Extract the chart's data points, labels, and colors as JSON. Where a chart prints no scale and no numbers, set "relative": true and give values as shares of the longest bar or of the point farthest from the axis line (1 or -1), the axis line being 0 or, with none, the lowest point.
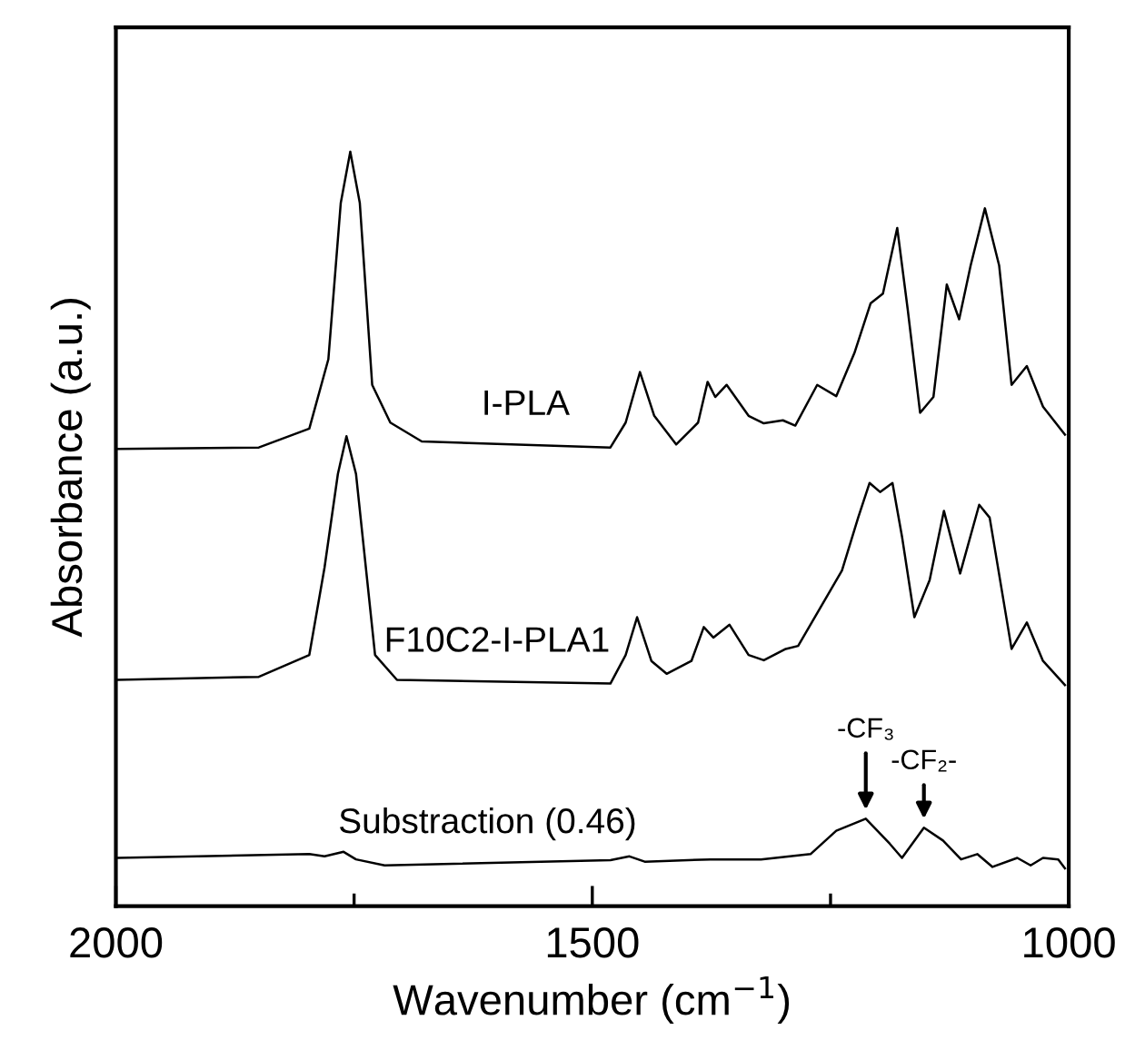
{
  "chart_data": {
    "type": "line",
    "relative": true,
    "xlabel": "Wavenumber (cm$^{−1}$)",
    "ylabel": "Absorbance (a.u.)",
    "tick_labels": "x",
    "xlim": [
      2000,
      1000
    ],
    "xticks": [
      2000,
      1500,
      1000,
      {
        "value": 1750,
        "label": null
      },
      {
        "value": 1250,
        "label": null
      }
    ],
    "marker": "none",
    "line_style": "solid",
    "grid": false,
    "legend": false,
    "series": [
      {
        "name": "I-PLA",
        "color": "#000000",
        "x": [
          1998,
          1850,
          1797,
          1777,
          1764,
          1754,
          1744,
          1731,
          1712,
          1679,
          1481,
          1465,
          1450,
          1435,
          1412,
          1389,
          1379,
          1371,
          1359,
          1336,
          1320,
          1300,
          1287,
          1264,
          1244,
          1225,
          1208,
          1195,
          1180,
          1169,
          1156,
          1142,
          1128,
          1115,
          1103,
          1088,
          1073,
          1060,
          1044,
          1027,
          1004
        ],
        "values": [
          0.606,
          0.608,
          0.633,
          0.725,
          0.932,
          1.0,
          0.932,
          0.691,
          0.641,
          0.616,
          0.608,
          0.641,
          0.708,
          0.65,
          0.612,
          0.641,
          0.695,
          0.675,
          0.691,
          0.65,
          0.64,
          0.644,
          0.637,
          0.691,
          0.676,
          0.733,
          0.799,
          0.812,
          0.899,
          0.791,
          0.654,
          0.675,
          0.824,
          0.778,
          0.849,
          0.925,
          0.849,
          0.691,
          0.716,
          0.662,
          0.625
        ]
      },
      {
        "name": "F10C2-I-PLA1",
        "color": "#000000",
        "x": [
          1998,
          1850,
          1797,
          1781,
          1767,
          1758,
          1748,
          1728,
          1705,
          1481,
          1465,
          1453,
          1438,
          1422,
          1396,
          1383,
          1373,
          1356,
          1336,
          1320,
          1297,
          1284,
          1238,
          1221,
          1209,
          1198,
          1185,
          1175,
          1162,
          1146,
          1131,
          1114,
          1094,
          1083,
          1060,
          1044,
          1027,
          1004
        ],
        "values": [
          0.3,
          0.304,
          0.333,
          0.449,
          0.573,
          0.623,
          0.573,
          0.333,
          0.3,
          0.295,
          0.333,
          0.383,
          0.325,
          0.308,
          0.325,
          0.37,
          0.356,
          0.373,
          0.333,
          0.326,
          0.341,
          0.345,
          0.445,
          0.515,
          0.561,
          0.549,
          0.561,
          0.49,
          0.383,
          0.432,
          0.524,
          0.441,
          0.532,
          0.515,
          0.341,
          0.376,
          0.325,
          0.293
        ]
      },
      {
        "name": "Substraction (0.46)",
        "color": "#000000",
        "x": [
          1998,
          1797,
          1781,
          1761,
          1748,
          1718,
          1481,
          1461,
          1445,
          1376,
          1323,
          1271,
          1244,
          1213,
          1188,
          1175,
          1152,
          1132,
          1113,
          1096,
          1080,
          1054,
          1040,
          1027,
          1011,
          1004
        ],
        "values": [
          0.064,
          0.069,
          0.066,
          0.072,
          0.062,
          0.054,
          0.061,
          0.066,
          0.059,
          0.062,
          0.062,
          0.069,
          0.1,
          0.116,
          0.083,
          0.064,
          0.104,
          0.087,
          0.062,
          0.069,
          0.052,
          0.064,
          0.054,
          0.064,
          0.062,
          0.05
        ]
      }
    ],
    "annotations": [
      {
        "text": "-CF₃",
        "x": 1213,
        "y": 0.116
      },
      {
        "text": "-CF₂-",
        "x": 1152,
        "y": 0.104
      }
    ]
  }
}
